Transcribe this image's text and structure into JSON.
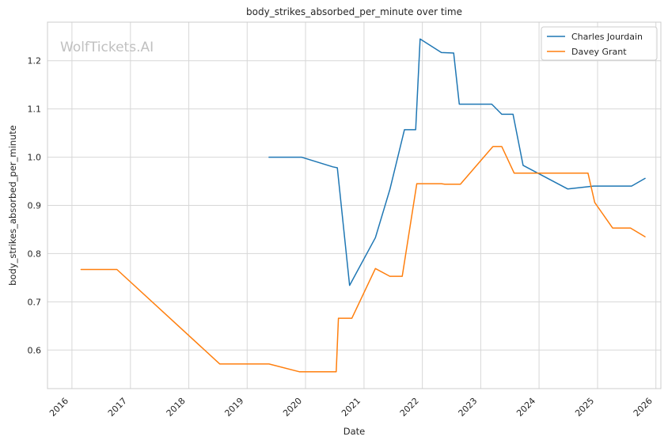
{
  "chart_data": {
    "type": "line",
    "title": "body_strikes_absorbed_per_minute over time",
    "xlabel": "Date",
    "ylabel": "body_strikes_absorbed_per_minute",
    "watermark": "WolfTickets.AI",
    "xlim": [
      "2015-08-01",
      "2026-02-01"
    ],
    "ylim": [
      0.52,
      1.28
    ],
    "x_ticks": [
      "2016",
      "2017",
      "2018",
      "2019",
      "2020",
      "2021",
      "2022",
      "2023",
      "2024",
      "2025",
      "2026"
    ],
    "y_ticks": [
      "0.6",
      "0.7",
      "0.8",
      "0.9",
      "1.0",
      "1.1",
      "1.2"
    ],
    "grid": true,
    "legend_position": "top-right",
    "series": [
      {
        "name": "Charles Jourdain",
        "color": "#1f77b4",
        "points": [
          [
            "2019-05-18",
            1.0
          ],
          [
            "2019-12-07",
            1.0
          ],
          [
            "2020-06-20",
            0.98
          ],
          [
            "2020-07-18",
            0.978
          ],
          [
            "2020-10-03",
            0.734
          ],
          [
            "2021-03-13",
            0.833
          ],
          [
            "2021-06-12",
            0.933
          ],
          [
            "2021-09-11",
            1.057
          ],
          [
            "2021-11-20",
            1.057
          ],
          [
            "2021-12-18",
            1.245
          ],
          [
            "2022-04-30",
            1.217
          ],
          [
            "2022-07-16",
            1.216
          ],
          [
            "2022-08-20",
            1.11
          ],
          [
            "2023-03-11",
            1.11
          ],
          [
            "2023-05-13",
            1.089
          ],
          [
            "2023-07-22",
            1.089
          ],
          [
            "2023-09-23",
            0.983
          ],
          [
            "2024-06-29",
            0.934
          ],
          [
            "2024-12-07",
            0.94
          ],
          [
            "2025-08-02",
            0.94
          ],
          [
            "2025-10-25",
            0.956
          ]
        ]
      },
      {
        "name": "Davey Grant",
        "color": "#ff7f0e",
        "points": [
          [
            "2016-02-27",
            0.767
          ],
          [
            "2016-10-08",
            0.767
          ],
          [
            "2018-07-14",
            0.571
          ],
          [
            "2019-05-18",
            0.571
          ],
          [
            "2019-11-23",
            0.555
          ],
          [
            "2020-07-11",
            0.555
          ],
          [
            "2020-07-25",
            0.666
          ],
          [
            "2020-10-17",
            0.666
          ],
          [
            "2021-03-13",
            0.769
          ],
          [
            "2021-06-12",
            0.753
          ],
          [
            "2021-08-28",
            0.753
          ],
          [
            "2021-11-27",
            0.945
          ],
          [
            "2022-04-30",
            0.945
          ],
          [
            "2022-05-21",
            0.944
          ],
          [
            "2022-08-27",
            0.944
          ],
          [
            "2023-03-18",
            1.022
          ],
          [
            "2023-05-13",
            1.022
          ],
          [
            "2023-07-29",
            0.967
          ],
          [
            "2024-11-02",
            0.967
          ],
          [
            "2024-12-14",
            0.906
          ],
          [
            "2025-04-05",
            0.853
          ],
          [
            "2025-07-26",
            0.853
          ],
          [
            "2025-10-25",
            0.835
          ]
        ]
      }
    ]
  }
}
